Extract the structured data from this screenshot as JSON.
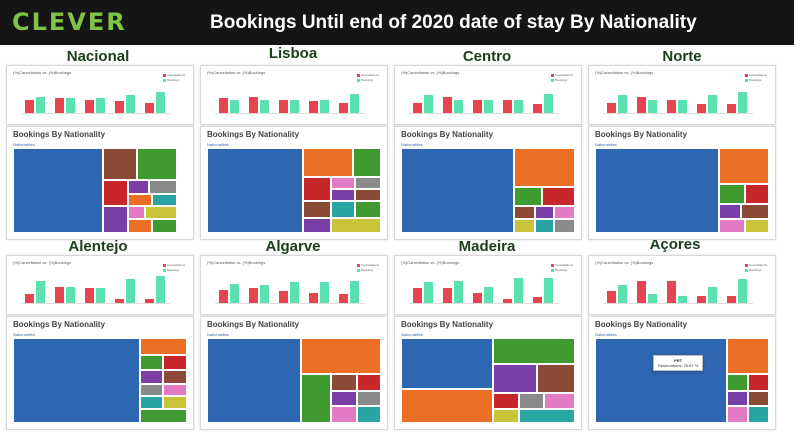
{
  "header": {
    "logo_text": "CLEVER",
    "title": "Bookings Until end of 2020 date of stay By Nationality"
  },
  "regions": [
    {
      "name": "Nacional"
    },
    {
      "name": "Lisboa"
    },
    {
      "name": "Centro"
    },
    {
      "name": "Norte"
    },
    {
      "name": "Alentejo"
    },
    {
      "name": "Algarve"
    },
    {
      "name": "Madeira"
    },
    {
      "name": "Açores"
    }
  ],
  "bar_chart_title": "(%)Cancellation vs. (%)Bookings",
  "legend": [
    "Cancellations",
    "Bookings"
  ],
  "treemap_title": "Bookings By Nationality",
  "treemap_subtitle": "Nationalities",
  "tooltip": {
    "label": "PRT",
    "text": "Reservations: 75.87 %"
  },
  "colors": {
    "cancel": "#e6454f",
    "booking": "#5be0b0",
    "prt": "#2e67b1",
    "orange": "#ea6e24",
    "green": "#3f9a2f",
    "red": "#c7272b",
    "purple": "#7a3fa6",
    "brown": "#8b4a36",
    "grey": "#8a8a8a",
    "pink": "#e27ac4",
    "teal": "#29a3a3",
    "yellow": "#c9c33a"
  }
}
